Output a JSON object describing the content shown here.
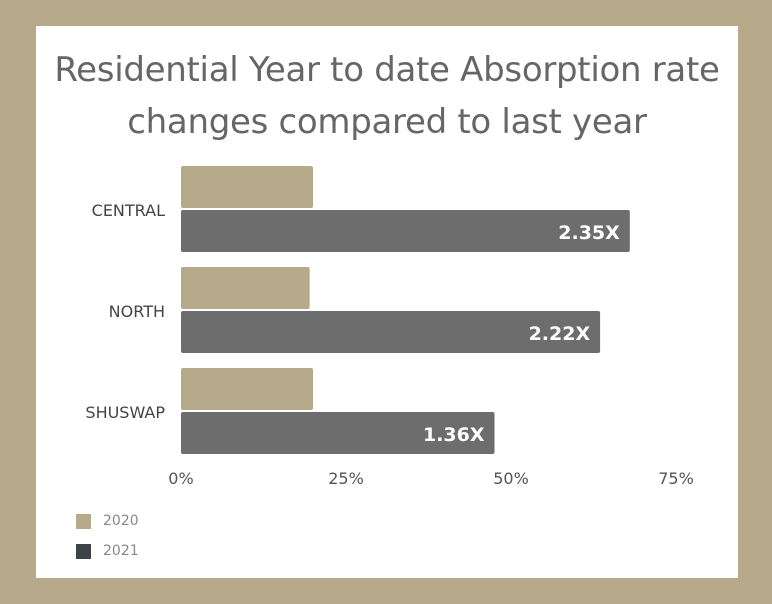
{
  "chart_data": {
    "type": "bar",
    "orientation": "horizontal",
    "title_lines": [
      "Residential Year to date Absorption rate",
      "changes compared to last year"
    ],
    "categories": [
      "CENTRAL",
      "NORTH",
      "SHUSWAP"
    ],
    "series": [
      {
        "name": "2020",
        "color": "#b6aa8b",
        "values": [
          20,
          19.5,
          20
        ]
      },
      {
        "name": "2021",
        "color": "#6d6d6d",
        "values": [
          68,
          63.5,
          47.5
        ],
        "data_labels": [
          "2.35X",
          "2.22X",
          "1.36X"
        ]
      }
    ],
    "xlim": [
      0,
      75
    ],
    "x_ticks": [
      "0%",
      "25%",
      "50%",
      "75%"
    ],
    "x_tick_values": [
      0,
      25,
      50,
      75
    ],
    "grid": false,
    "legend_position": "bottom-left",
    "legend_colors": [
      "#b6aa8b",
      "#3f4248"
    ]
  }
}
